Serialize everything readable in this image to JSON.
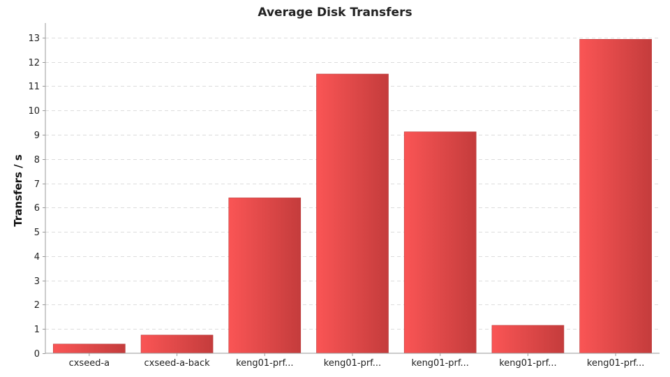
{
  "chart_data": {
    "type": "bar",
    "title": "Average Disk Transfers",
    "xlabel": "",
    "ylabel": "Transfers / s",
    "categories": [
      "cxseed-a",
      "cxseed-a-back",
      "keng01-prf...",
      "keng01-prf...",
      "keng01-prf...",
      "keng01-prf...",
      "keng01-prf..."
    ],
    "values": [
      0.38,
      0.75,
      6.4,
      11.5,
      9.12,
      1.15,
      12.93
    ],
    "ylim": [
      0,
      13.6
    ],
    "yticks": [
      0,
      1,
      2,
      3,
      4,
      5,
      6,
      7,
      8,
      9,
      10,
      11,
      12,
      13
    ],
    "grid": true,
    "legend": "none",
    "colors": {
      "bar_light": "#fa5555",
      "bar_dark": "#c43c3c",
      "bar_edge": "#b83838"
    }
  }
}
